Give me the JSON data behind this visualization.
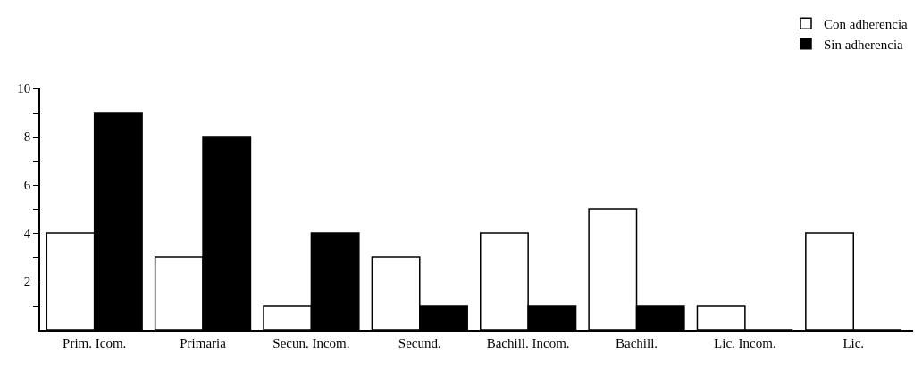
{
  "chart_data": {
    "type": "bar",
    "categories": [
      "Prim. Icom.",
      "Primaria",
      "Secun. Incom.",
      "Secund.",
      "Bachill. Incom.",
      "Bachill.",
      "Lic. Incom.",
      "Lic."
    ],
    "series": [
      {
        "name": "Con adherencia",
        "color": "#ffffff",
        "values": [
          4,
          3,
          1,
          3,
          4,
          5,
          1,
          4
        ]
      },
      {
        "name": "Sin adherencia",
        "color": "#000000",
        "values": [
          9,
          8,
          4,
          1,
          1,
          1,
          0,
          0
        ]
      }
    ],
    "ylim": [
      0,
      10
    ],
    "yticks": [
      {
        "value": 1,
        "label": null
      },
      2,
      {
        "value": 3,
        "label": null
      },
      4,
      {
        "value": 5,
        "label": null
      },
      6,
      {
        "value": 7,
        "label": null
      },
      8,
      {
        "value": 9,
        "label": null
      },
      10
    ],
    "legend": "top right",
    "grid": false
  }
}
